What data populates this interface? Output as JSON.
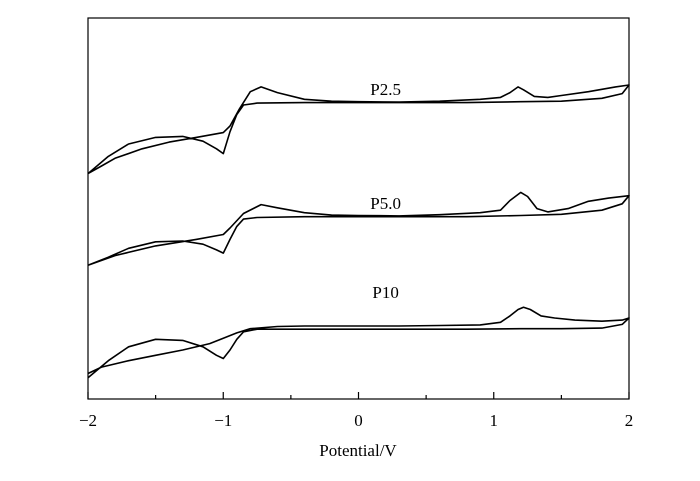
{
  "chart_data": {
    "type": "line",
    "title": "",
    "xlabel": "Potential/V",
    "ylabel": "",
    "xlim": [
      -2,
      2
    ],
    "x_ticks": [
      {
        "value": -2,
        "label": "−2"
      },
      {
        "value": -1,
        "label": "−1"
      },
      {
        "value": 0,
        "label": "0"
      },
      {
        "value": 1,
        "label": "1"
      },
      {
        "value": 2,
        "label": "2"
      }
    ],
    "y_ticks_shown": false,
    "grid": false,
    "legend": "none (curves labelled directly)",
    "series": [
      {
        "name": "P2.5",
        "label_x": 0.2,
        "label_y": 0.96,
        "forward": [
          [
            -2.0,
            0.12
          ],
          [
            -1.9,
            0.2
          ],
          [
            -1.8,
            0.28
          ],
          [
            -1.6,
            0.38
          ],
          [
            -1.4,
            0.45
          ],
          [
            -1.2,
            0.5
          ],
          [
            -1.0,
            0.55
          ],
          [
            -0.95,
            0.62
          ],
          [
            -0.88,
            0.8
          ],
          [
            -0.8,
            0.98
          ],
          [
            -0.72,
            1.03
          ],
          [
            -0.6,
            0.97
          ],
          [
            -0.4,
            0.9
          ],
          [
            -0.2,
            0.88
          ],
          [
            0.0,
            0.875
          ],
          [
            0.3,
            0.87
          ],
          [
            0.6,
            0.88
          ],
          [
            0.9,
            0.9
          ],
          [
            1.05,
            0.92
          ],
          [
            1.12,
            0.97
          ],
          [
            1.18,
            1.03
          ],
          [
            1.22,
            1.0
          ],
          [
            1.3,
            0.93
          ],
          [
            1.4,
            0.92
          ],
          [
            1.5,
            0.94
          ],
          [
            1.7,
            0.98
          ],
          [
            1.9,
            1.03
          ],
          [
            2.0,
            1.05
          ]
        ],
        "reverse": [
          [
            2.0,
            1.05
          ],
          [
            1.95,
            0.96
          ],
          [
            1.8,
            0.91
          ],
          [
            1.5,
            0.88
          ],
          [
            1.2,
            0.875
          ],
          [
            0.8,
            0.865
          ],
          [
            0.4,
            0.865
          ],
          [
            0.0,
            0.865
          ],
          [
            -0.4,
            0.865
          ],
          [
            -0.75,
            0.86
          ],
          [
            -0.85,
            0.84
          ],
          [
            -0.9,
            0.74
          ],
          [
            -0.95,
            0.56
          ],
          [
            -1.0,
            0.33
          ],
          [
            -1.05,
            0.38
          ],
          [
            -1.15,
            0.46
          ],
          [
            -1.3,
            0.51
          ],
          [
            -1.5,
            0.5
          ],
          [
            -1.7,
            0.43
          ],
          [
            -1.85,
            0.3
          ],
          [
            -2.0,
            0.12
          ]
        ]
      },
      {
        "name": "P5.0",
        "label_x": 0.2,
        "label_y": 0.96,
        "forward": [
          [
            -2.0,
            0.12
          ],
          [
            -1.8,
            0.24
          ],
          [
            -1.5,
            0.36
          ],
          [
            -1.2,
            0.44
          ],
          [
            -1.0,
            0.5
          ],
          [
            -0.95,
            0.58
          ],
          [
            -0.85,
            0.76
          ],
          [
            -0.72,
            0.87
          ],
          [
            -0.6,
            0.83
          ],
          [
            -0.4,
            0.77
          ],
          [
            -0.2,
            0.74
          ],
          [
            0.0,
            0.735
          ],
          [
            0.3,
            0.73
          ],
          [
            0.6,
            0.745
          ],
          [
            0.9,
            0.77
          ],
          [
            1.05,
            0.8
          ],
          [
            1.12,
            0.92
          ],
          [
            1.2,
            1.02
          ],
          [
            1.25,
            0.97
          ],
          [
            1.32,
            0.82
          ],
          [
            1.4,
            0.78
          ],
          [
            1.55,
            0.82
          ],
          [
            1.7,
            0.91
          ],
          [
            1.85,
            0.95
          ],
          [
            2.0,
            0.98
          ]
        ],
        "reverse": [
          [
            2.0,
            0.98
          ],
          [
            1.95,
            0.88
          ],
          [
            1.8,
            0.8
          ],
          [
            1.5,
            0.75
          ],
          [
            1.2,
            0.735
          ],
          [
            0.8,
            0.72
          ],
          [
            0.4,
            0.72
          ],
          [
            0.0,
            0.72
          ],
          [
            -0.4,
            0.72
          ],
          [
            -0.75,
            0.71
          ],
          [
            -0.85,
            0.69
          ],
          [
            -0.9,
            0.6
          ],
          [
            -0.95,
            0.44
          ],
          [
            -1.0,
            0.27
          ],
          [
            -1.05,
            0.31
          ],
          [
            -1.15,
            0.38
          ],
          [
            -1.3,
            0.42
          ],
          [
            -1.5,
            0.41
          ],
          [
            -1.7,
            0.33
          ],
          [
            -1.85,
            0.22
          ],
          [
            -2.0,
            0.12
          ]
        ]
      },
      {
        "name": "P10",
        "label_x": 0.2,
        "label_y": 0.96,
        "forward": [
          [
            -2.0,
            0.08
          ],
          [
            -1.9,
            0.14
          ],
          [
            -1.7,
            0.2
          ],
          [
            -1.5,
            0.25
          ],
          [
            -1.3,
            0.3
          ],
          [
            -1.1,
            0.36
          ],
          [
            -1.0,
            0.41
          ],
          [
            -0.9,
            0.46
          ],
          [
            -0.8,
            0.5
          ],
          [
            -0.6,
            0.52
          ],
          [
            -0.4,
            0.525
          ],
          [
            -0.2,
            0.525
          ],
          [
            0.0,
            0.525
          ],
          [
            0.3,
            0.525
          ],
          [
            0.6,
            0.53
          ],
          [
            0.9,
            0.535
          ],
          [
            1.05,
            0.56
          ],
          [
            1.12,
            0.62
          ],
          [
            1.18,
            0.68
          ],
          [
            1.22,
            0.7
          ],
          [
            1.27,
            0.68
          ],
          [
            1.35,
            0.62
          ],
          [
            1.45,
            0.6
          ],
          [
            1.6,
            0.58
          ],
          [
            1.8,
            0.57
          ],
          [
            1.95,
            0.58
          ],
          [
            2.0,
            0.6
          ]
        ],
        "reverse": [
          [
            2.0,
            0.6
          ],
          [
            1.95,
            0.54
          ],
          [
            1.8,
            0.505
          ],
          [
            1.5,
            0.5
          ],
          [
            1.2,
            0.5
          ],
          [
            0.8,
            0.495
          ],
          [
            0.4,
            0.495
          ],
          [
            0.0,
            0.495
          ],
          [
            -0.4,
            0.495
          ],
          [
            -0.75,
            0.495
          ],
          [
            -0.85,
            0.47
          ],
          [
            -0.9,
            0.4
          ],
          [
            -0.95,
            0.3
          ],
          [
            -1.0,
            0.22
          ],
          [
            -1.05,
            0.25
          ],
          [
            -1.15,
            0.33
          ],
          [
            -1.3,
            0.39
          ],
          [
            -1.5,
            0.4
          ],
          [
            -1.7,
            0.33
          ],
          [
            -1.85,
            0.2
          ],
          [
            -2.0,
            0.04
          ]
        ]
      }
    ]
  }
}
